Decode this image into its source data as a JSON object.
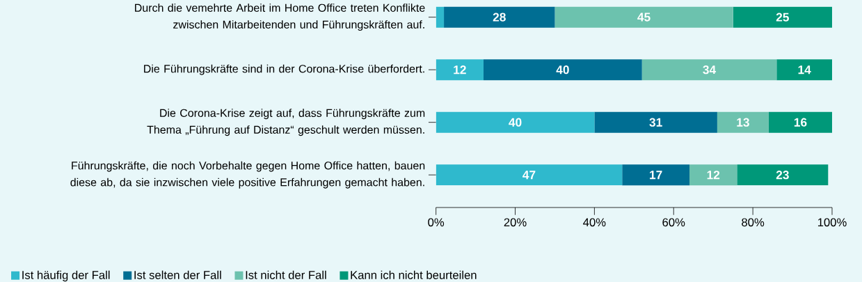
{
  "chart_data": {
    "type": "bar",
    "orientation": "horizontal",
    "stacked": true,
    "legend": "bottom",
    "categories": [
      "Durch die vemehrte Arbeit im Home Office treten Konflikte zwischen Mitarbeitenden und Führungskräften auf.",
      "Die Führungskräfte sind in der Corona-Krise überfordert.",
      "Die Corona-Krise zeigt auf, dass Führungskräfte zum Thema „Führung auf Distanz“ geschult werden müssen.",
      "Führungskräfte, die noch Vorbehalte gegen Home Office hatten, bauen diese ab, da sie inzwischen viele positive Erfahrungen gemacht haben."
    ],
    "xlim": [
      0,
      100
    ],
    "xticks": [
      {
        "value": 0,
        "label": "0%"
      },
      {
        "value": 20,
        "label": "20%"
      },
      {
        "value": 40,
        "label": "40%"
      },
      {
        "value": 60,
        "label": "60%"
      },
      {
        "value": 80,
        "label": "80%"
      },
      {
        "value": 100,
        "label": "100%"
      }
    ],
    "series": [
      {
        "name": "Ist häufig der Fall",
        "color": "#2fb9cd",
        "values": [
          2,
          12,
          40,
          47
        ],
        "value_labels": [
          null,
          "12",
          "40",
          "47"
        ]
      },
      {
        "name": "Ist selten der Fall",
        "color": "#006e93",
        "values": [
          28,
          40,
          31,
          17
        ],
        "value_labels": [
          "28",
          "40",
          "31",
          "17"
        ]
      },
      {
        "name": "Ist nicht der Fall",
        "color": "#6cc2ae",
        "values": [
          45,
          34,
          13,
          12
        ],
        "value_labels": [
          "45",
          "34",
          "13",
          "12"
        ]
      },
      {
        "name": "Kann ich nicht beurteilen",
        "color": "#009879",
        "values": [
          25,
          14,
          16,
          23
        ],
        "value_labels": [
          "25",
          "14",
          "16",
          "23"
        ]
      }
    ]
  }
}
